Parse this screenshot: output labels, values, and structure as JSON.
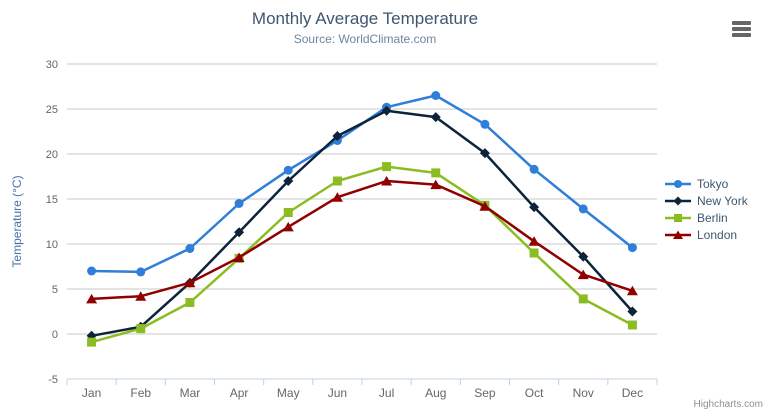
{
  "header": {
    "title": "Monthly Average Temperature",
    "subtitle": "Source: WorldClimate.com"
  },
  "menu": {
    "icon": "hamburger-icon"
  },
  "credits": "Highcharts.com",
  "colors": {
    "title": "#3E576F",
    "subtitle": "#6D869F",
    "axis_title": "#4572A7",
    "axis_labels": "#666666",
    "gridline": "#C8C8C8",
    "axis_line": "#C0D0E0",
    "legend_text": "#3E576F",
    "credits_text": "#909090",
    "menu_icon": "#666666"
  },
  "chart_data": {
    "type": "line",
    "title": "Monthly Average Temperature",
    "subtitle": "Source: WorldClimate.com",
    "categories": [
      "Jan",
      "Feb",
      "Mar",
      "Apr",
      "May",
      "Jun",
      "Jul",
      "Aug",
      "Sep",
      "Oct",
      "Nov",
      "Dec"
    ],
    "xlabel": "",
    "ylabel": "Temperature (°C)",
    "ylim": [
      -5,
      30
    ],
    "ytick_step": 5,
    "yticks": [
      -5,
      0,
      5,
      10,
      15,
      20,
      25,
      30
    ],
    "grid": true,
    "legend_position": "right",
    "series": [
      {
        "name": "Tokyo",
        "color": "#2f7ed8",
        "marker": "circle",
        "values": [
          7.0,
          6.9,
          9.5,
          14.5,
          18.2,
          21.5,
          25.2,
          26.5,
          23.3,
          18.3,
          13.9,
          9.6
        ]
      },
      {
        "name": "New York",
        "color": "#0d233a",
        "marker": "diamond",
        "values": [
          -0.2,
          0.8,
          5.7,
          11.3,
          17.0,
          22.0,
          24.8,
          24.1,
          20.1,
          14.1,
          8.6,
          2.5
        ]
      },
      {
        "name": "Berlin",
        "color": "#8bbc21",
        "marker": "square",
        "values": [
          -0.9,
          0.6,
          3.5,
          8.4,
          13.5,
          17.0,
          18.6,
          17.9,
          14.3,
          9.0,
          3.9,
          1.0
        ]
      },
      {
        "name": "London",
        "color": "#910000",
        "marker": "triangle",
        "values": [
          3.9,
          4.2,
          5.7,
          8.5,
          11.9,
          15.2,
          17.0,
          16.6,
          14.2,
          10.3,
          6.6,
          4.8
        ]
      }
    ]
  }
}
